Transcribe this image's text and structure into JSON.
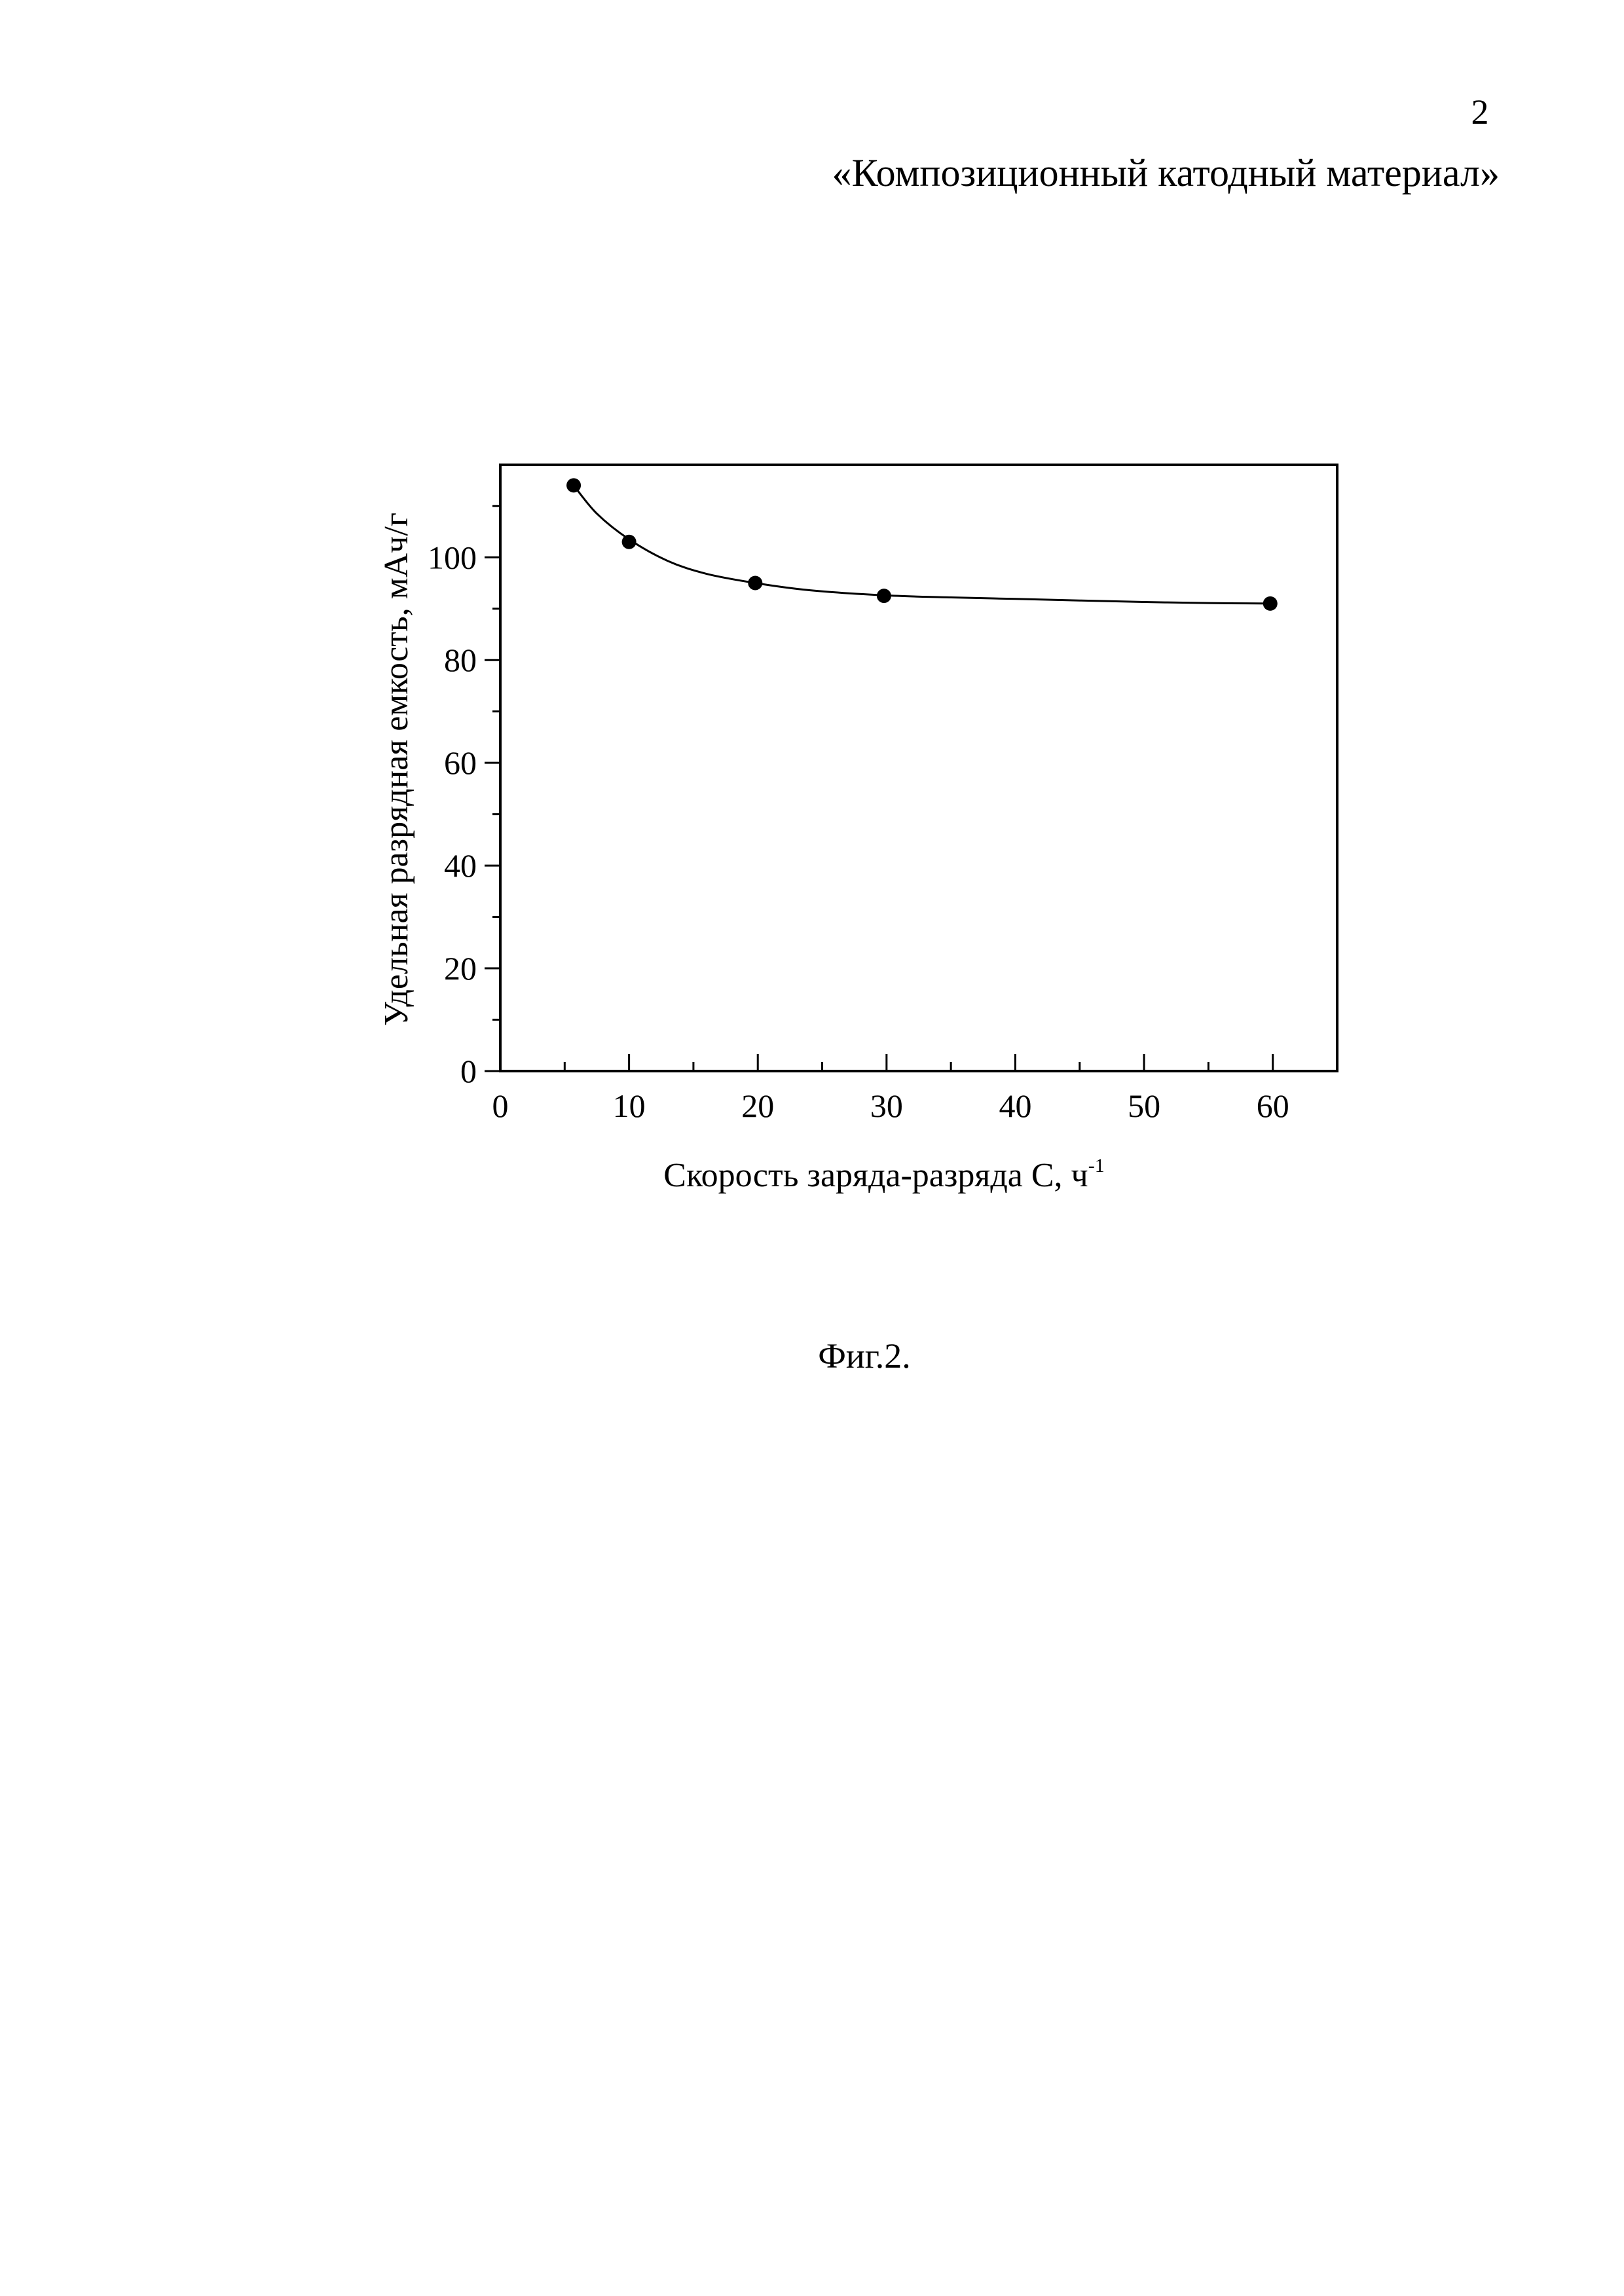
{
  "page": {
    "number": "2",
    "title": "«Композиционный катодный материал»",
    "figure_caption": "Фиг.2."
  },
  "chart_data": {
    "type": "scatter",
    "title": "",
    "xlabel": "Скорость заряда-разряда С, ч",
    "xlabel_superscript": "-1",
    "ylabel": "Удельная разрядная емкость, мАч/г",
    "xlim": [
      0,
      65
    ],
    "ylim": [
      0,
      118
    ],
    "xticks": [
      0,
      10,
      20,
      30,
      40,
      50,
      60
    ],
    "yticks": [
      0,
      20,
      40,
      60,
      80,
      100
    ],
    "xminor_step": 5,
    "yminor_step": 10,
    "grid": false,
    "legend": "none",
    "series": [
      {
        "x": [
          5.7,
          10,
          19.8,
          29.8,
          59.8
        ],
        "y": [
          114,
          103,
          95,
          92.5,
          91
        ]
      }
    ],
    "fit_curve": {
      "x": [
        5.7,
        7.5,
        10,
        13,
        16,
        19.8,
        24,
        29.8,
        35,
        40,
        45,
        50,
        55,
        59.8
      ],
      "y": [
        114,
        108.5,
        103.5,
        99.3,
        96.8,
        95,
        93.6,
        92.6,
        92.2,
        91.9,
        91.6,
        91.3,
        91.1,
        91
      ]
    }
  }
}
